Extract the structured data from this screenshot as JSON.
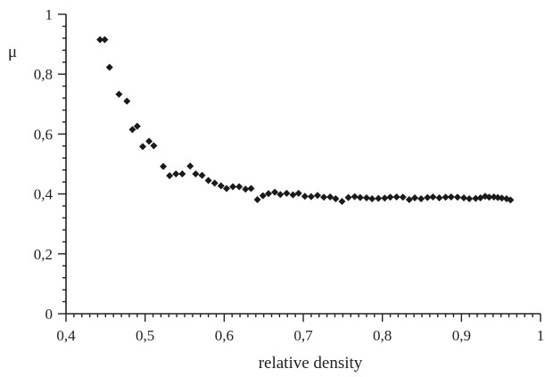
{
  "chart_data": {
    "type": "scatter",
    "title": "",
    "xlabel": "relative density",
    "ylabel": "μ",
    "xlim": [
      0.4,
      1
    ],
    "ylim": [
      0,
      1
    ],
    "x_ticks": [
      "0,4",
      "0,5",
      "0,6",
      "0,7",
      "0,8",
      "0,9",
      "1"
    ],
    "x_tick_values": [
      0.4,
      0.5,
      0.6,
      0.7,
      0.8,
      0.9,
      1.0
    ],
    "y_ticks": [
      "0",
      "0,2",
      "0,4",
      "0,6",
      "0,8",
      "1"
    ],
    "y_tick_values": [
      0,
      0.2,
      0.4,
      0.6,
      0.8,
      1.0
    ],
    "minor_x_step": 0.01,
    "minor_y_step": 0.04,
    "grid": false,
    "marker": "diamond",
    "marker_color": "#1a1a1a",
    "series": [
      {
        "points": [
          [
            0.443,
            0.915
          ],
          [
            0.449,
            0.915
          ],
          [
            0.455,
            0.823
          ],
          [
            0.467,
            0.733
          ],
          [
            0.477,
            0.71
          ],
          [
            0.484,
            0.615
          ],
          [
            0.49,
            0.626
          ],
          [
            0.497,
            0.558
          ],
          [
            0.505,
            0.576
          ],
          [
            0.511,
            0.561
          ],
          [
            0.523,
            0.492
          ],
          [
            0.531,
            0.461
          ],
          [
            0.539,
            0.467
          ],
          [
            0.547,
            0.467
          ],
          [
            0.557,
            0.493
          ],
          [
            0.564,
            0.467
          ],
          [
            0.572,
            0.462
          ],
          [
            0.58,
            0.445
          ],
          [
            0.588,
            0.436
          ],
          [
            0.596,
            0.427
          ],
          [
            0.603,
            0.418
          ],
          [
            0.611,
            0.424
          ],
          [
            0.619,
            0.424
          ],
          [
            0.627,
            0.416
          ],
          [
            0.634,
            0.418
          ],
          [
            0.642,
            0.381
          ],
          [
            0.649,
            0.394
          ],
          [
            0.656,
            0.401
          ],
          [
            0.664,
            0.406
          ],
          [
            0.671,
            0.398
          ],
          [
            0.679,
            0.402
          ],
          [
            0.687,
            0.397
          ],
          [
            0.694,
            0.402
          ],
          [
            0.702,
            0.392
          ],
          [
            0.71,
            0.391
          ],
          [
            0.718,
            0.395
          ],
          [
            0.726,
            0.389
          ],
          [
            0.734,
            0.39
          ],
          [
            0.741,
            0.384
          ],
          [
            0.749,
            0.375
          ],
          [
            0.757,
            0.388
          ],
          [
            0.765,
            0.391
          ],
          [
            0.772,
            0.388
          ],
          [
            0.78,
            0.387
          ],
          [
            0.787,
            0.384
          ],
          [
            0.795,
            0.385
          ],
          [
            0.803,
            0.386
          ],
          [
            0.81,
            0.389
          ],
          [
            0.818,
            0.39
          ],
          [
            0.826,
            0.389
          ],
          [
            0.834,
            0.381
          ],
          [
            0.841,
            0.387
          ],
          [
            0.849,
            0.384
          ],
          [
            0.857,
            0.388
          ],
          [
            0.864,
            0.39
          ],
          [
            0.872,
            0.387
          ],
          [
            0.88,
            0.389
          ],
          [
            0.887,
            0.39
          ],
          [
            0.895,
            0.389
          ],
          [
            0.903,
            0.387
          ],
          [
            0.91,
            0.384
          ],
          [
            0.918,
            0.385
          ],
          [
            0.924,
            0.387
          ],
          [
            0.93,
            0.392
          ],
          [
            0.935,
            0.389
          ],
          [
            0.941,
            0.39
          ],
          [
            0.946,
            0.388
          ],
          [
            0.951,
            0.386
          ],
          [
            0.957,
            0.384
          ],
          [
            0.962,
            0.38
          ]
        ]
      }
    ]
  }
}
